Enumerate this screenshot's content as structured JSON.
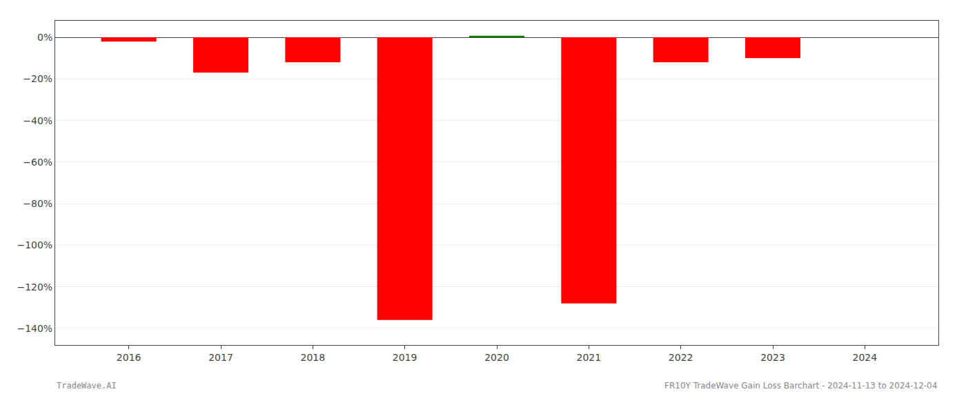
{
  "chart_data": {
    "type": "bar",
    "x": [
      2016,
      2017,
      2018,
      2019,
      2020,
      2021,
      2022,
      2023,
      2024
    ],
    "values": [
      -2.0,
      -17.0,
      -12.0,
      -136.0,
      0.8,
      -128.0,
      -12.0,
      -10.0,
      0.0
    ],
    "colors": [
      "#ff0000",
      "#ff0000",
      "#ff0000",
      "#ff0000",
      "#008000",
      "#ff0000",
      "#ff0000",
      "#ff0000",
      "#ff0000"
    ],
    "xlim": [
      2015.2,
      2024.8
    ],
    "xticks": [
      2016,
      2017,
      2018,
      2019,
      2020,
      2021,
      2022,
      2023,
      2024
    ],
    "ylim": [
      -148,
      8
    ],
    "yticks": [
      {
        "value": 0,
        "label": "0%"
      },
      {
        "value": -20,
        "label": "−20%"
      },
      {
        "value": -40,
        "label": "−40%"
      },
      {
        "value": -60,
        "label": "−60%"
      },
      {
        "value": -80,
        "label": "−80%"
      },
      {
        "value": -100,
        "label": "−100%"
      },
      {
        "value": -120,
        "label": "−120%"
      },
      {
        "value": -140,
        "label": "−140%"
      }
    ],
    "grid": true,
    "annotations": [
      "TradeWave.AI",
      "FR10Y TradeWave Gain Loss Barchart - 2024-11-13 to 2024-12-04"
    ]
  }
}
